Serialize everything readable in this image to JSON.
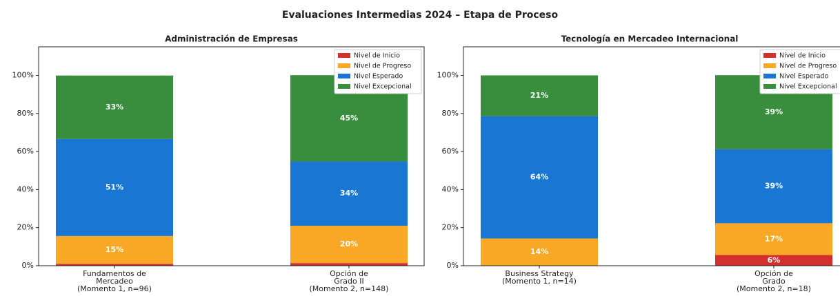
{
  "title": "Evaluaciones Intermedias 2024 – Etapa de Proceso",
  "chart_data": [
    {
      "type": "stacked_bar",
      "title": "Administración de Empresas",
      "legend": "upper right",
      "categories": [
        "Fundamentos de\nMercadeo\n(Momento 1, n=96)",
        "Opción de\nGrado II\n(Momento 2, n=148)"
      ],
      "ylim": [
        0,
        115
      ],
      "yticks": [
        {
          "value": 0,
          "label": "0%"
        },
        {
          "value": 20,
          "label": "20%"
        },
        {
          "value": 40,
          "label": "40%"
        },
        {
          "value": 60,
          "label": "60%"
        },
        {
          "value": 80,
          "label": "80%"
        },
        {
          "value": 100,
          "label": "100%"
        }
      ],
      "series": [
        {
          "name": "Nivel de Inicio",
          "color": "#d32f2f",
          "values": [
            1.0,
            1.4
          ],
          "value_labels": [
            null,
            null
          ]
        },
        {
          "name": "Nivel de Progreso",
          "color": "#f9a825",
          "values": [
            14.6,
            19.6
          ],
          "value_labels": [
            "15%",
            "20%"
          ]
        },
        {
          "name": "Nivel Esperado",
          "color": "#1976d2",
          "values": [
            51.0,
            33.8
          ],
          "value_labels": [
            "51%",
            "34%"
          ]
        },
        {
          "name": "Nivel Excepcional",
          "color": "#388e3c",
          "values": [
            33.3,
            45.3
          ],
          "value_labels": [
            "33%",
            "45%"
          ]
        }
      ]
    },
    {
      "type": "stacked_bar",
      "title": "Tecnología en Mercadeo Internacional",
      "legend": "upper right",
      "categories": [
        "Business Strategy\n(Momento 1, n=14)",
        "Opción de\nGrado\n(Momento 2, n=18)"
      ],
      "ylim": [
        0,
        115
      ],
      "yticks": [
        {
          "value": 0,
          "label": "0%"
        },
        {
          "value": 20,
          "label": "20%"
        },
        {
          "value": 40,
          "label": "40%"
        },
        {
          "value": 60,
          "label": "60%"
        },
        {
          "value": 80,
          "label": "80%"
        },
        {
          "value": 100,
          "label": "100%"
        }
      ],
      "series": [
        {
          "name": "Nivel de Inicio",
          "color": "#d32f2f",
          "values": [
            0,
            5.6
          ],
          "value_labels": [
            null,
            "6%"
          ]
        },
        {
          "name": "Nivel de Progreso",
          "color": "#f9a825",
          "values": [
            14.3,
            16.7
          ],
          "value_labels": [
            "14%",
            "17%"
          ]
        },
        {
          "name": "Nivel Esperado",
          "color": "#1976d2",
          "values": [
            64.3,
            38.9
          ],
          "value_labels": [
            "64%",
            "39%"
          ]
        },
        {
          "name": "Nivel Excepcional",
          "color": "#388e3c",
          "values": [
            21.4,
            38.9
          ],
          "value_labels": [
            "21%",
            "39%"
          ]
        }
      ]
    }
  ]
}
